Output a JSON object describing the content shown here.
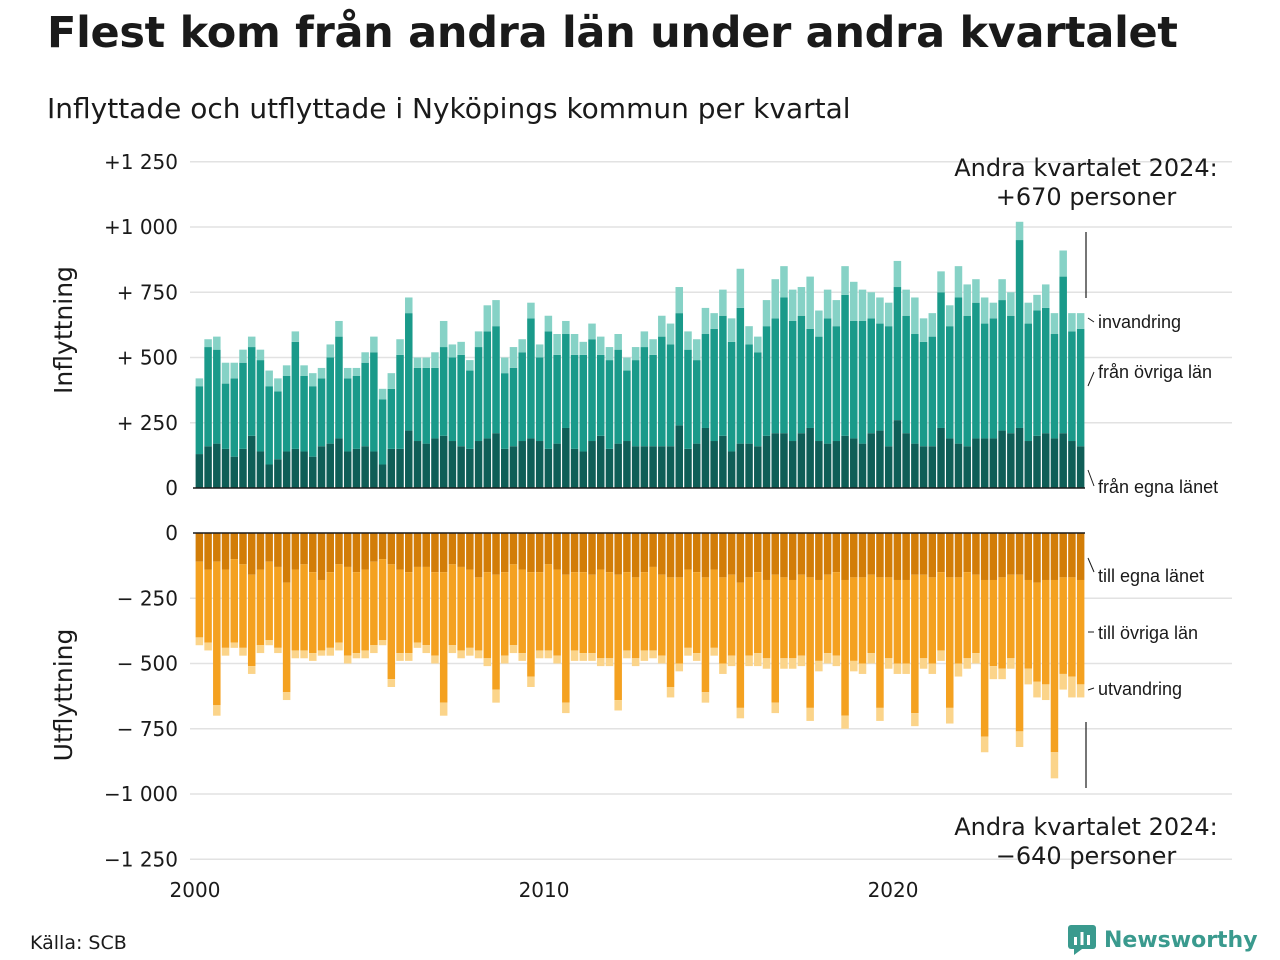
{
  "title": "Flest kom från andra län under andra kvartalet",
  "subtitle": "Inflyttade och utflyttade i Nyköpings kommun per kvartal",
  "source": "Källa: SCB",
  "logo": {
    "text": "Newsworthy",
    "icon": "newsworthy-logo-icon",
    "color": "#3a9a8e"
  },
  "chart_data": {
    "type": "bar",
    "stacked": true,
    "diverging": true,
    "x_start": "2000 Q1",
    "x_end": "2024 Q2",
    "x_ticks": [
      "2000",
      "2010",
      "2020"
    ],
    "panels": [
      {
        "name": "inflow",
        "ylabel": "Inflyttning",
        "ylim": [
          0,
          1250
        ],
        "y_ticks": [
          "0",
          "+  250",
          "+  500",
          "+  750",
          "+1 000",
          "+1 250"
        ],
        "series": [
          {
            "name": "från egna länet",
            "label_text": "från egna länet",
            "color": "#0f5e57",
            "values": [
              130,
              160,
              170,
              150,
              120,
              150,
              200,
              140,
              90,
              110,
              140,
              150,
              140,
              120,
              160,
              170,
              190,
              140,
              150,
              160,
              140,
              90,
              150,
              150,
              220,
              180,
              170,
              190,
              200,
              180,
              160,
              150,
              180,
              190,
              210,
              150,
              160,
              180,
              190,
              180,
              150,
              170,
              230,
              150,
              140,
              180,
              200,
              150,
              170,
              180,
              160,
              160,
              160,
              160,
              160,
              240,
              150,
              170,
              230,
              180,
              200,
              140,
              170,
              170,
              160,
              200,
              210,
              210,
              180,
              210,
              230,
              180,
              170,
              180,
              200,
              190,
              170,
              210,
              220,
              160,
              260,
              210,
              170,
              160,
              160,
              230,
              190,
              170,
              160,
              190,
              190,
              190,
              220,
              210,
              230,
              180,
              200,
              210,
              190,
              210,
              180,
              160
            ]
          },
          {
            "name": "från övriga län",
            "label_text": "från övriga län",
            "color": "#1a9a8a",
            "values": [
              260,
              380,
              360,
              250,
              300,
              330,
              340,
              350,
              300,
              260,
              290,
              410,
              290,
              270,
              260,
              330,
              390,
              280,
              280,
              320,
              380,
              250,
              230,
              360,
              450,
              280,
              290,
              270,
              340,
              320,
              350,
              300,
              360,
              410,
              410,
              290,
              300,
              340,
              460,
              320,
              450,
              340,
              360,
              360,
              370,
              390,
              310,
              340,
              360,
              270,
              330,
              380,
              350,
              420,
              390,
              430,
              380,
              320,
              360,
              430,
              460,
              420,
              520,
              380,
              360,
              420,
              440,
              520,
              460,
              450,
              380,
              400,
              480,
              440,
              540,
              450,
              470,
              440,
              410,
              460,
              510,
              450,
              420,
              400,
              420,
              520,
              430,
              560,
              500,
              520,
              440,
              460,
              500,
              450,
              720,
              450,
              480,
              480,
              400,
              600,
              420,
              450
            ]
          },
          {
            "name": "invandring",
            "label_text": "invandring",
            "color": "#86d2c6",
            "values": [
              30,
              30,
              50,
              80,
              60,
              50,
              40,
              40,
              60,
              50,
              40,
              40,
              40,
              50,
              40,
              50,
              60,
              40,
              30,
              40,
              60,
              40,
              60,
              60,
              60,
              40,
              40,
              60,
              100,
              50,
              50,
              40,
              60,
              100,
              100,
              60,
              80,
              50,
              60,
              50,
              60,
              80,
              50,
              80,
              50,
              60,
              70,
              50,
              60,
              50,
              50,
              60,
              60,
              80,
              80,
              100,
              70,
              80,
              100,
              60,
              100,
              90,
              150,
              70,
              60,
              100,
              150,
              120,
              120,
              110,
              200,
              100,
              110,
              100,
              110,
              150,
              120,
              100,
              100,
              90,
              100,
              100,
              140,
              90,
              90,
              80,
              80,
              120,
              120,
              90,
              100,
              60,
              80,
              90,
              70,
              80,
              60,
              90,
              80,
              100,
              70,
              60
            ]
          }
        ]
      },
      {
        "name": "outflow",
        "ylabel": "Utflyttning",
        "ylim": [
          -1250,
          0
        ],
        "y_ticks": [
          "0",
          "−  250",
          "−  500",
          "−  750",
          "−1 000",
          "−1 250"
        ],
        "series": [
          {
            "name": "till egna länet",
            "label_text": "till egna länet",
            "color": "#d27d08",
            "values": [
              -110,
              -140,
              -110,
              -140,
              -100,
              -120,
              -160,
              -140,
              -110,
              -130,
              -190,
              -140,
              -120,
              -150,
              -180,
              -150,
              -120,
              -130,
              -150,
              -140,
              -110,
              -100,
              -120,
              -140,
              -150,
              -130,
              -130,
              -150,
              -150,
              -120,
              -130,
              -140,
              -170,
              -150,
              -160,
              -150,
              -120,
              -140,
              -150,
              -150,
              -120,
              -140,
              -160,
              -150,
              -150,
              -160,
              -140,
              -150,
              -160,
              -150,
              -170,
              -150,
              -130,
              -160,
              -170,
              -170,
              -140,
              -150,
              -170,
              -140,
              -170,
              -160,
              -190,
              -170,
              -150,
              -180,
              -160,
              -170,
              -180,
              -160,
              -170,
              -180,
              -160,
              -150,
              -180,
              -170,
              -170,
              -160,
              -170,
              -170,
              -180,
              -180,
              -160,
              -160,
              -170,
              -150,
              -170,
              -170,
              -150,
              -160,
              -180,
              -180,
              -170,
              -160,
              -160,
              -180,
              -190,
              -180,
              -180,
              -170,
              -170,
              -180
            ]
          },
          {
            "name": "till övriga län",
            "label_text": "till övriga län",
            "color": "#f4a120",
            "values": [
              -290,
              -280,
              -550,
              -300,
              -320,
              -320,
              -350,
              -290,
              -300,
              -310,
              -420,
              -310,
              -330,
              -310,
              -270,
              -290,
              -300,
              -340,
              -310,
              -310,
              -320,
              -310,
              -440,
              -320,
              -310,
              -290,
              -300,
              -320,
              -500,
              -310,
              -320,
              -300,
              -280,
              -330,
              -440,
              -320,
              -310,
              -320,
              -400,
              -300,
              -330,
              -330,
              -490,
              -300,
              -310,
              -300,
              -340,
              -330,
              -480,
              -300,
              -310,
              -300,
              -320,
              -310,
              -420,
              -330,
              -300,
              -310,
              -440,
              -300,
              -330,
              -310,
              -480,
              -300,
              -310,
              -300,
              -490,
              -310,
              -300,
              -310,
              -500,
              -310,
              -300,
              -320,
              -520,
              -320,
              -330,
              -300,
              -500,
              -310,
              -320,
              -320,
              -530,
              -320,
              -330,
              -300,
              -500,
              -330,
              -330,
              -300,
              -600,
              -330,
              -350,
              -320,
              -600,
              -340,
              -380,
              -400,
              -660,
              -370,
              -380,
              -400
            ]
          },
          {
            "name": "utvandring",
            "label_text": "utvandring",
            "color": "#fbd48a",
            "values": [
              -30,
              -30,
              -40,
              -30,
              -20,
              -30,
              -30,
              -30,
              -20,
              -20,
              -30,
              -30,
              -30,
              -30,
              -20,
              -30,
              -30,
              -30,
              -20,
              -30,
              -30,
              -20,
              -30,
              -30,
              -30,
              -20,
              -30,
              -30,
              -50,
              -30,
              -30,
              -30,
              -30,
              -30,
              -50,
              -30,
              -30,
              -30,
              -40,
              -30,
              -30,
              -30,
              -40,
              -40,
              -30,
              -30,
              -30,
              -30,
              -40,
              -30,
              -30,
              -40,
              -30,
              -30,
              -40,
              -30,
              -30,
              -30,
              -40,
              -30,
              -40,
              -40,
              -40,
              -40,
              -50,
              -40,
              -40,
              -40,
              -40,
              -40,
              -50,
              -40,
              -40,
              -40,
              -50,
              -40,
              -40,
              -40,
              -50,
              -40,
              -40,
              -40,
              -50,
              -40,
              -40,
              -40,
              -60,
              -50,
              -40,
              -40,
              -60,
              -50,
              -40,
              -40,
              -60,
              -60,
              -60,
              -60,
              -100,
              -60,
              -80,
              -50
            ]
          }
        ]
      }
    ],
    "annotations": [
      {
        "panel": "inflow",
        "line1": "Andra kvartalet 2024:",
        "line2": "+670 personer"
      },
      {
        "panel": "outflow",
        "line1": "Andra kvartalet 2024:",
        "line2": "−640 personer"
      }
    ]
  }
}
